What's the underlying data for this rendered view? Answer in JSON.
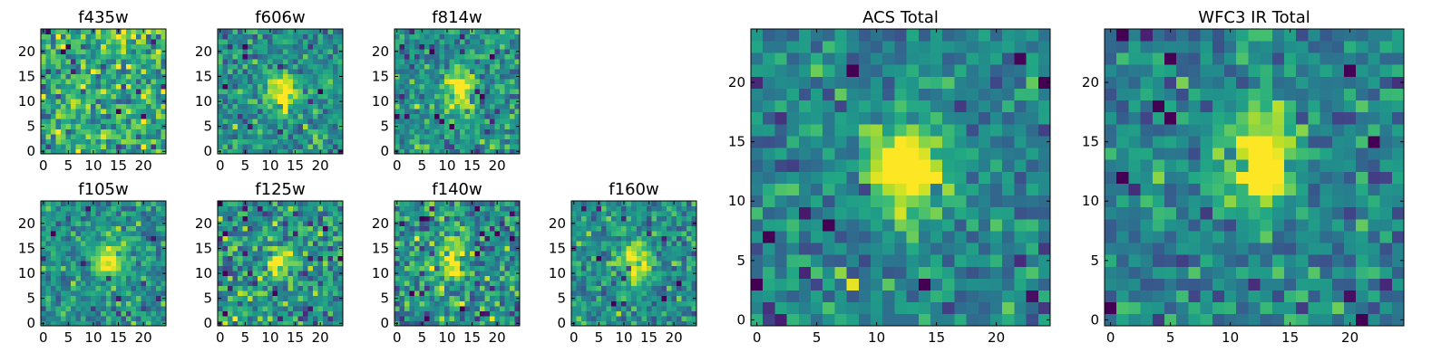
{
  "figure": {
    "colormap": "viridis",
    "colors": {
      "low": "#440154",
      "mid": "#21918c",
      "high": "#fde725",
      "frame": "#000000"
    }
  },
  "chart_data": [
    {
      "type": "heatmap",
      "title": "f435w",
      "xlim": [
        0,
        24
      ],
      "ylim": [
        0,
        24
      ],
      "xticks": [
        "0",
        "5",
        "10",
        "15",
        "20"
      ],
      "yticks": [
        "0",
        "5",
        "10",
        "15",
        "20"
      ],
      "grid": false,
      "source_center": [
        12.5,
        12
      ],
      "signal": "none",
      "noise": "high"
    },
    {
      "type": "heatmap",
      "title": "f606w",
      "xlim": [
        0,
        24
      ],
      "ylim": [
        0,
        24
      ],
      "xticks": [
        "0",
        "5",
        "10",
        "15",
        "20"
      ],
      "yticks": [
        "0",
        "5",
        "10",
        "15",
        "20"
      ],
      "grid": false,
      "source_center": [
        12.5,
        12
      ],
      "signal": "moderate",
      "noise": "moderate"
    },
    {
      "type": "heatmap",
      "title": "f814w",
      "xlim": [
        0,
        24
      ],
      "ylim": [
        0,
        24
      ],
      "xticks": [
        "0",
        "5",
        "10",
        "15",
        "20"
      ],
      "yticks": [
        "0",
        "5",
        "10",
        "15",
        "20"
      ],
      "grid": false,
      "source_center": [
        12.5,
        12.5
      ],
      "signal": "moderate",
      "noise": "moderate"
    },
    {
      "type": "heatmap",
      "title": "f105w",
      "xlim": [
        0,
        24
      ],
      "ylim": [
        0,
        24
      ],
      "xticks": [
        "0",
        "5",
        "10",
        "15",
        "20"
      ],
      "yticks": [
        "0",
        "5",
        "10",
        "15",
        "20"
      ],
      "grid": false,
      "source_center": [
        13,
        12.5
      ],
      "signal": "moderate",
      "noise": "moderate"
    },
    {
      "type": "heatmap",
      "title": "f125w",
      "xlim": [
        0,
        24
      ],
      "ylim": [
        0,
        24
      ],
      "xticks": [
        "0",
        "5",
        "10",
        "15",
        "20"
      ],
      "yticks": [
        "0",
        "5",
        "10",
        "15",
        "20"
      ],
      "grid": false,
      "source_center": [
        12,
        12.5
      ],
      "signal": "moderate",
      "noise": "high"
    },
    {
      "type": "heatmap",
      "title": "f140w",
      "xlim": [
        0,
        24
      ],
      "ylim": [
        0,
        24
      ],
      "xticks": [
        "0",
        "5",
        "10",
        "15",
        "20"
      ],
      "yticks": [
        "0",
        "5",
        "10",
        "15",
        "20"
      ],
      "grid": false,
      "source_center": [
        11,
        13
      ],
      "signal": "moderate",
      "noise": "high"
    },
    {
      "type": "heatmap",
      "title": "f160w",
      "xlim": [
        0,
        24
      ],
      "ylim": [
        0,
        24
      ],
      "xticks": [
        "0",
        "5",
        "10",
        "15",
        "20"
      ],
      "yticks": [
        "0",
        "5",
        "10",
        "15",
        "20"
      ],
      "grid": false,
      "source_center": [
        12.5,
        12.5
      ],
      "signal": "moderate",
      "noise": "moderate"
    },
    {
      "type": "heatmap",
      "title": "ACS Total",
      "xlim": [
        0,
        24
      ],
      "ylim": [
        0,
        24
      ],
      "xticks": [
        "0",
        "5",
        "10",
        "15",
        "20"
      ],
      "yticks": [
        "0",
        "5",
        "10",
        "15",
        "20"
      ],
      "grid": false,
      "source_center": [
        12.5,
        12.5
      ],
      "signal": "strong",
      "noise": "moderate"
    },
    {
      "type": "heatmap",
      "title": "WFC3 IR Total",
      "xlim": [
        0,
        24
      ],
      "ylim": [
        0,
        24
      ],
      "xticks": [
        "0",
        "5",
        "10",
        "15",
        "20"
      ],
      "yticks": [
        "0",
        "5",
        "10",
        "15",
        "20"
      ],
      "grid": false,
      "source_center": [
        12.5,
        13.5
      ],
      "signal": "strong",
      "noise": "moderate"
    }
  ]
}
